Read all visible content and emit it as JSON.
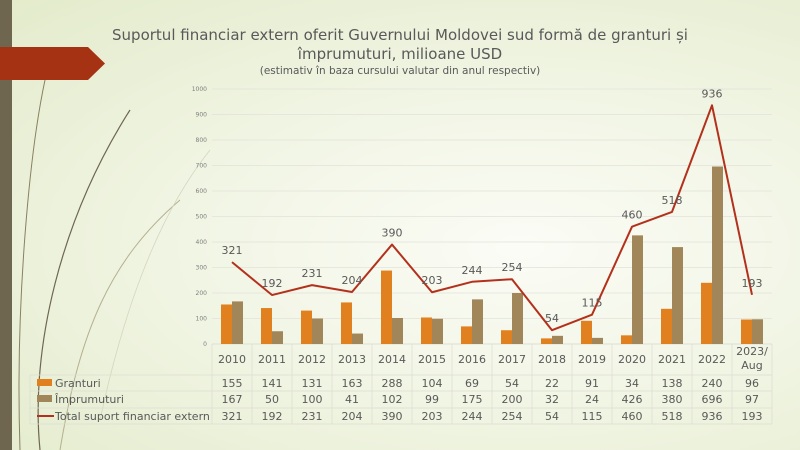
{
  "title": "Suportul financiar extern oferit Guvernului Moldovei sud formă de granturi și împrumuturi, milioane USD",
  "subtitle": "(estimativ în baza cursului valutar din anul respectiv)",
  "colors": {
    "granturi": "#e0801e",
    "imprumuturi": "#a08659",
    "total": "#b3311c",
    "accent": "#a53212",
    "sidebar": "#6f6650"
  },
  "chart_data": {
    "type": "bar",
    "title": "Suportul financiar extern oferit Guvernului Moldovei sud formă de granturi și împrumuturi, milioane USD",
    "subtitle": "(estimativ în baza cursului valutar din anul respectiv)",
    "categories": [
      "2010",
      "2011",
      "2012",
      "2013",
      "2014",
      "2015",
      "2016",
      "2017",
      "2018",
      "2019",
      "2020",
      "2021",
      "2022",
      "2023/ Aug"
    ],
    "series": [
      {
        "name": "Granturi",
        "type": "bar",
        "values": [
          155,
          141,
          131,
          163,
          288,
          104,
          69,
          54,
          22,
          91,
          34,
          138,
          240,
          96
        ]
      },
      {
        "name": "Împrumuturi",
        "type": "bar",
        "values": [
          167,
          50,
          100,
          41,
          102,
          99,
          175,
          200,
          32,
          24,
          426,
          380,
          696,
          97
        ]
      },
      {
        "name": "Total suport financiar extern",
        "type": "line",
        "values": [
          321,
          192,
          231,
          204,
          390,
          203,
          244,
          254,
          54,
          115,
          460,
          518,
          936,
          193
        ]
      }
    ],
    "ylim": [
      0,
      1000
    ],
    "yticks": [
      0,
      100,
      200,
      300,
      400,
      500,
      600,
      700,
      800,
      900,
      1000
    ],
    "grid": true,
    "legend": "data-table-bottom"
  }
}
